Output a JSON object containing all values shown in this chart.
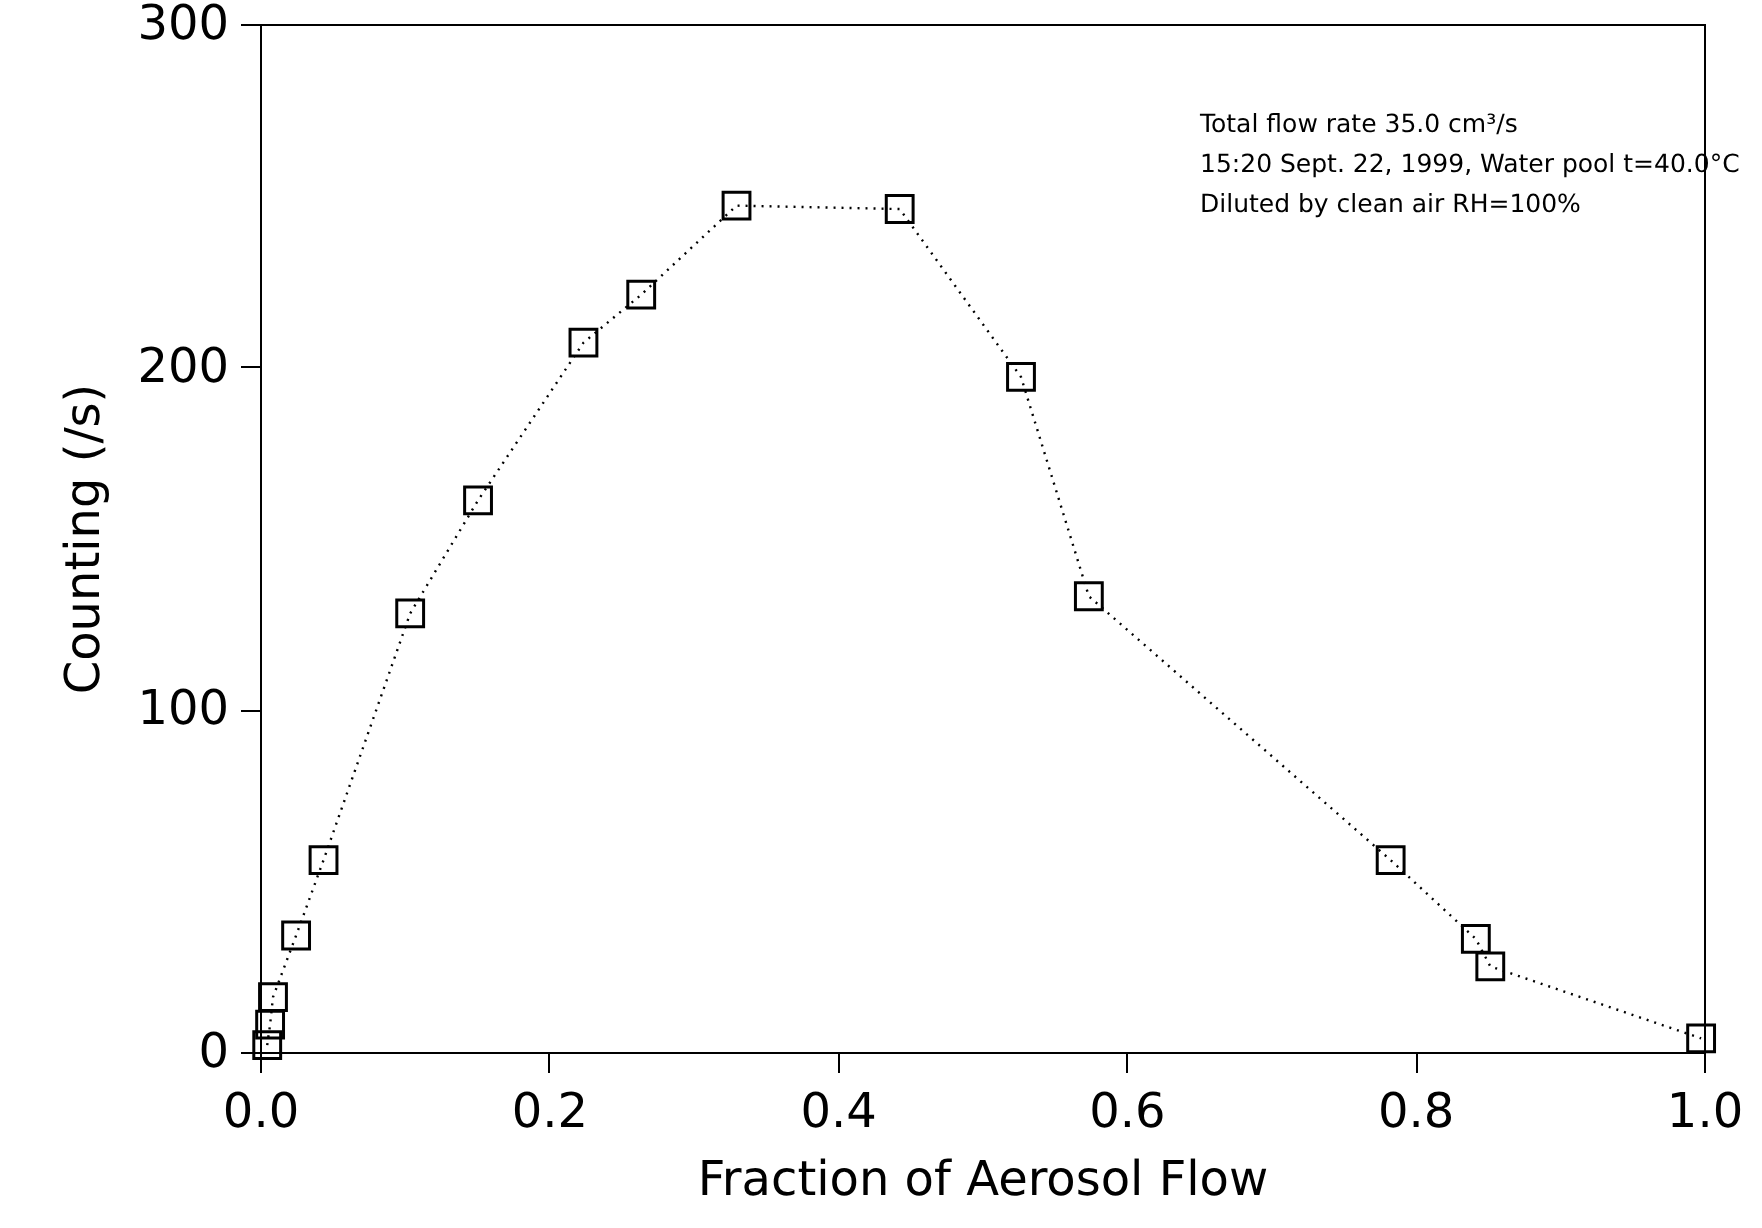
{
  "chart_data": {
    "type": "line",
    "xlabel": "Fraction of Aerosol Flow",
    "ylabel": "Counting (/s)",
    "x": [
      0.005,
      0.006,
      0.007,
      0.009,
      0.025,
      0.044,
      0.104,
      0.151,
      0.224,
      0.264,
      0.33,
      0.443,
      0.527,
      0.574,
      0.783,
      0.842,
      0.852,
      0.998
    ],
    "series": [
      {
        "color": "#000000",
        "values": [
          2,
          null,
          8,
          16,
          34,
          56,
          128,
          161,
          207,
          221,
          247,
          246,
          197,
          133,
          56,
          33,
          25,
          4
        ]
      }
    ],
    "xlim": [
      0,
      1
    ],
    "xticks": [
      {
        "value": 0,
        "label": "0.0"
      },
      {
        "value": 0.2,
        "label": "0.2"
      },
      {
        "value": 0.4,
        "label": "0.4"
      },
      {
        "value": 0.6,
        "label": "0.6"
      },
      {
        "value": 0.8,
        "label": "0.8"
      },
      {
        "value": 1,
        "label": "1.0"
      }
    ],
    "ylim": [
      0,
      300
    ],
    "yticks": [
      0,
      100,
      200,
      300
    ],
    "marker": "square",
    "line_style": "dotted",
    "grid": false,
    "annotations": [
      "Total flow rate 35.0 cm³/s",
      "15:20 Sept. 22, 1999, Water pool t=40.0°C",
      "Diluted by clean air RH=100%"
    ]
  }
}
